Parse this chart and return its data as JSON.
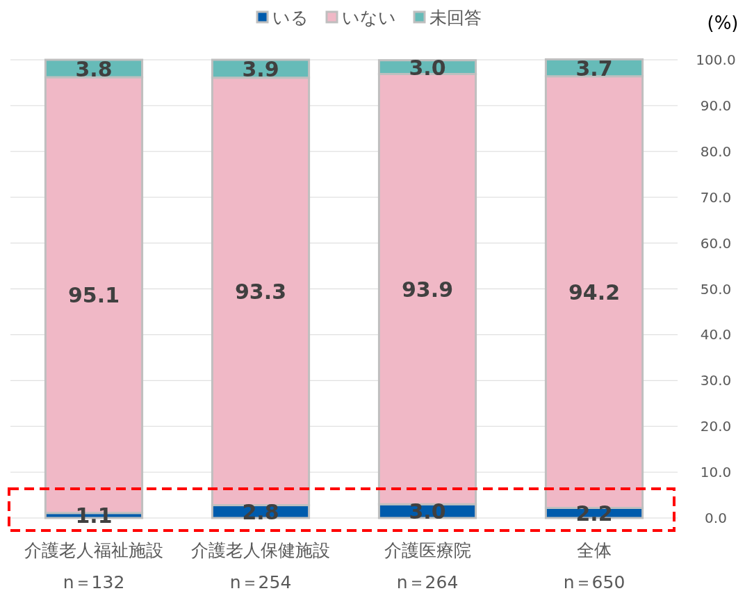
{
  "chart_data": {
    "type": "bar",
    "stacked": true,
    "categories": [
      "介護老人福祉施設\nn＝132",
      "介護老人保健施設\nn＝254",
      "介護医療院\nn＝264",
      "全体\nn＝650"
    ],
    "ylabel": "(%)",
    "ylim": [
      0,
      100
    ],
    "yticks": [
      {
        "value": 0,
        "label": "0.0"
      },
      {
        "value": 10,
        "label": "10.0"
      },
      {
        "value": 20,
        "label": "20.0"
      },
      {
        "value": 30,
        "label": "30.0"
      },
      {
        "value": 40,
        "label": "40.0"
      },
      {
        "value": 50,
        "label": "50.0"
      },
      {
        "value": 60,
        "label": "60.0"
      },
      {
        "value": 70,
        "label": "70.0"
      },
      {
        "value": 80,
        "label": "80.0"
      },
      {
        "value": 90,
        "label": "90.0"
      },
      {
        "value": 100,
        "label": "100.0"
      }
    ],
    "grid": "y",
    "legend": "top",
    "series": [
      {
        "name": "いる",
        "color": "#005bac",
        "values": [
          1.1,
          2.8,
          3.0,
          2.2
        ],
        "value_labels": [
          "1.1",
          "2.8",
          "3.0",
          "2.2"
        ]
      },
      {
        "name": "いない",
        "color": "#f0b8c6",
        "values": [
          95.1,
          93.3,
          93.9,
          94.2
        ],
        "value_labels": [
          "95.1",
          "93.3",
          "93.9",
          "94.2"
        ]
      },
      {
        "name": "未回答",
        "color": "#66bbb8",
        "values": [
          3.8,
          3.9,
          3.0,
          3.7
        ],
        "value_labels": [
          "3.8",
          "3.9",
          "3.0",
          "3.7"
        ]
      }
    ]
  }
}
